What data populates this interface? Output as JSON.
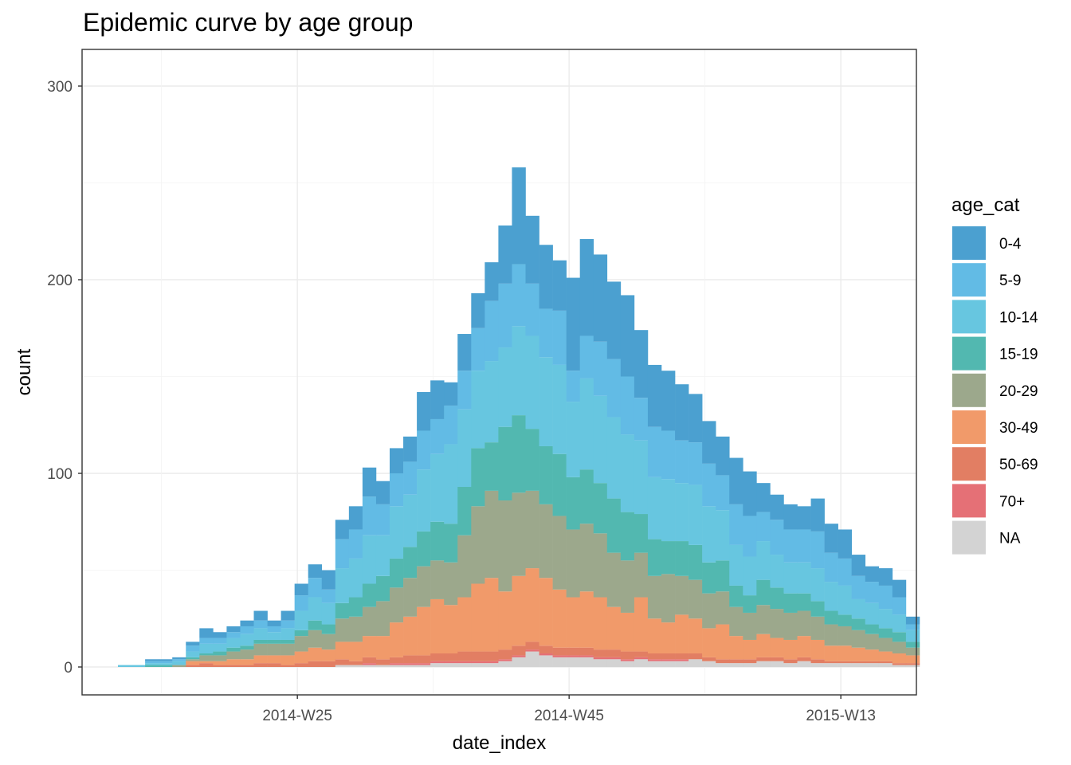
{
  "chart_data": {
    "type": "bar",
    "stacked": true,
    "title": "Epidemic curve by age group",
    "xlabel": "date_index",
    "ylabel": "count",
    "ylim": [
      -14,
      300
    ],
    "yticks": [
      0,
      100,
      200,
      300
    ],
    "x_tick_labels": [
      {
        "label": "2014-W25",
        "week": 13
      },
      {
        "label": "2014-W45",
        "week": 33
      },
      {
        "label": "2015-W13",
        "week": 53
      }
    ],
    "x_first_week": "2014-W12",
    "grid": true,
    "legend": {
      "title": "age_cat",
      "placement": "right"
    },
    "series": [
      {
        "name": "0-4",
        "color": "#4BA0D0",
        "values": [
          0,
          0,
          1,
          1,
          1,
          2,
          5,
          3,
          3,
          3,
          5,
          3,
          5,
          6,
          7,
          10,
          10,
          12,
          15,
          12,
          13,
          13,
          20,
          20,
          12,
          19,
          18,
          20,
          30,
          50,
          35,
          33,
          26,
          48,
          50,
          45,
          40,
          42,
          35,
          32,
          31,
          29,
          25,
          22,
          20,
          24,
          23,
          15,
          13,
          13,
          12,
          17,
          15,
          15,
          11,
          8,
          9,
          9,
          4
        ]
      },
      {
        "name": "5-9",
        "color": "#62BBE5",
        "values": [
          0,
          0,
          1,
          1,
          1,
          3,
          3,
          3,
          3,
          4,
          4,
          3,
          4,
          8,
          10,
          7,
          15,
          15,
          20,
          16,
          17,
          17,
          20,
          18,
          20,
          20,
          22,
          31,
          33,
          32,
          27,
          25,
          28,
          16,
          22,
          28,
          30,
          30,
          22,
          26,
          25,
          22,
          22,
          22,
          18,
          21,
          21,
          15,
          18,
          17,
          17,
          19,
          15,
          14,
          12,
          11,
          12,
          9,
          3
        ]
      },
      {
        "name": "10-14",
        "color": "#67C6E0",
        "values": [
          1,
          1,
          1,
          1,
          2,
          3,
          5,
          4,
          5,
          6,
          6,
          4,
          6,
          10,
          12,
          11,
          18,
          20,
          25,
          21,
          27,
          27,
          32,
          35,
          41,
          40,
          40,
          42,
          41,
          46,
          48,
          46,
          46,
          39,
          47,
          45,
          42,
          40,
          38,
          32,
          32,
          30,
          31,
          29,
          26,
          21,
          20,
          20,
          17,
          16,
          16,
          17,
          15,
          15,
          10,
          11,
          10,
          9,
          6
        ]
      },
      {
        "name": "15-19",
        "color": "#52B8B0",
        "values": [
          0,
          0,
          1,
          1,
          0,
          1,
          1,
          2,
          2,
          2,
          2,
          2,
          2,
          3,
          5,
          5,
          8,
          10,
          12,
          13,
          15,
          16,
          18,
          20,
          20,
          25,
          30,
          25,
          38,
          40,
          32,
          30,
          32,
          27,
          28,
          26,
          28,
          25,
          20,
          19,
          17,
          18,
          18,
          16,
          16,
          11,
          9,
          13,
          11,
          10,
          9,
          8,
          7,
          6,
          6,
          5,
          5,
          5,
          3
        ]
      },
      {
        "name": "20-29",
        "color": "#9CA88C",
        "values": [
          0,
          0,
          0,
          0,
          1,
          1,
          3,
          3,
          4,
          5,
          6,
          6,
          6,
          8,
          9,
          8,
          12,
          13,
          15,
          18,
          18,
          20,
          21,
          20,
          22,
          32,
          40,
          45,
          47,
          43,
          40,
          38,
          38,
          35,
          35,
          33,
          28,
          27,
          23,
          22,
          25,
          20,
          20,
          18,
          17,
          15,
          14,
          15,
          15,
          14,
          13,
          12,
          11,
          10,
          9,
          8,
          7,
          6,
          4
        ]
      },
      {
        "name": "30-49",
        "color": "#F19A6A",
        "values": [
          0,
          0,
          0,
          0,
          0,
          2,
          1,
          2,
          3,
          3,
          4,
          4,
          5,
          6,
          7,
          6,
          9,
          10,
          11,
          12,
          18,
          20,
          25,
          28,
          25,
          28,
          35,
          38,
          30,
          36,
          38,
          35,
          30,
          26,
          29,
          27,
          22,
          20,
          28,
          18,
          16,
          20,
          18,
          15,
          18,
          12,
          10,
          12,
          10,
          10,
          11,
          10,
          8,
          8,
          7,
          6,
          5,
          5,
          4
        ]
      },
      {
        "name": "50-69",
        "color": "#E27E63",
        "values": [
          0,
          0,
          0,
          0,
          0,
          1,
          2,
          1,
          1,
          1,
          2,
          2,
          1,
          2,
          3,
          3,
          3,
          2,
          3,
          3,
          3,
          4,
          4,
          4,
          4,
          5,
          5,
          5,
          5,
          5,
          4,
          4,
          4,
          4,
          4,
          4,
          4,
          4,
          3,
          3,
          3,
          3,
          3,
          2,
          2,
          2,
          2,
          2,
          2,
          2,
          2,
          2,
          1,
          1,
          1,
          1,
          1,
          1,
          1
        ]
      },
      {
        "name": "70+",
        "color": "#E57076",
        "values": [
          0,
          0,
          0,
          0,
          0,
          0,
          0,
          0,
          0,
          0,
          0,
          0,
          0,
          0,
          0,
          0,
          0,
          0,
          1,
          0,
          1,
          1,
          1,
          1,
          1,
          1,
          1,
          1,
          1,
          1,
          1,
          1,
          1,
          1,
          1,
          1,
          1,
          1,
          1,
          1,
          1,
          1,
          0,
          0,
          0,
          0,
          0,
          0,
          0,
          0,
          0,
          0,
          0,
          0,
          0,
          0,
          0,
          0,
          0
        ]
      },
      {
        "name": "NA",
        "color": "#D3D3D3",
        "values": [
          0,
          0,
          0,
          0,
          0,
          0,
          0,
          0,
          0,
          0,
          0,
          0,
          0,
          0,
          0,
          0,
          1,
          1,
          1,
          1,
          1,
          1,
          1,
          2,
          2,
          2,
          2,
          2,
          3,
          5,
          8,
          6,
          5,
          5,
          5,
          4,
          4,
          3,
          4,
          3,
          3,
          3,
          4,
          3,
          2,
          2,
          2,
          3,
          3,
          2,
          3,
          2,
          2,
          2,
          2,
          2,
          2,
          1,
          1
        ]
      }
    ]
  }
}
